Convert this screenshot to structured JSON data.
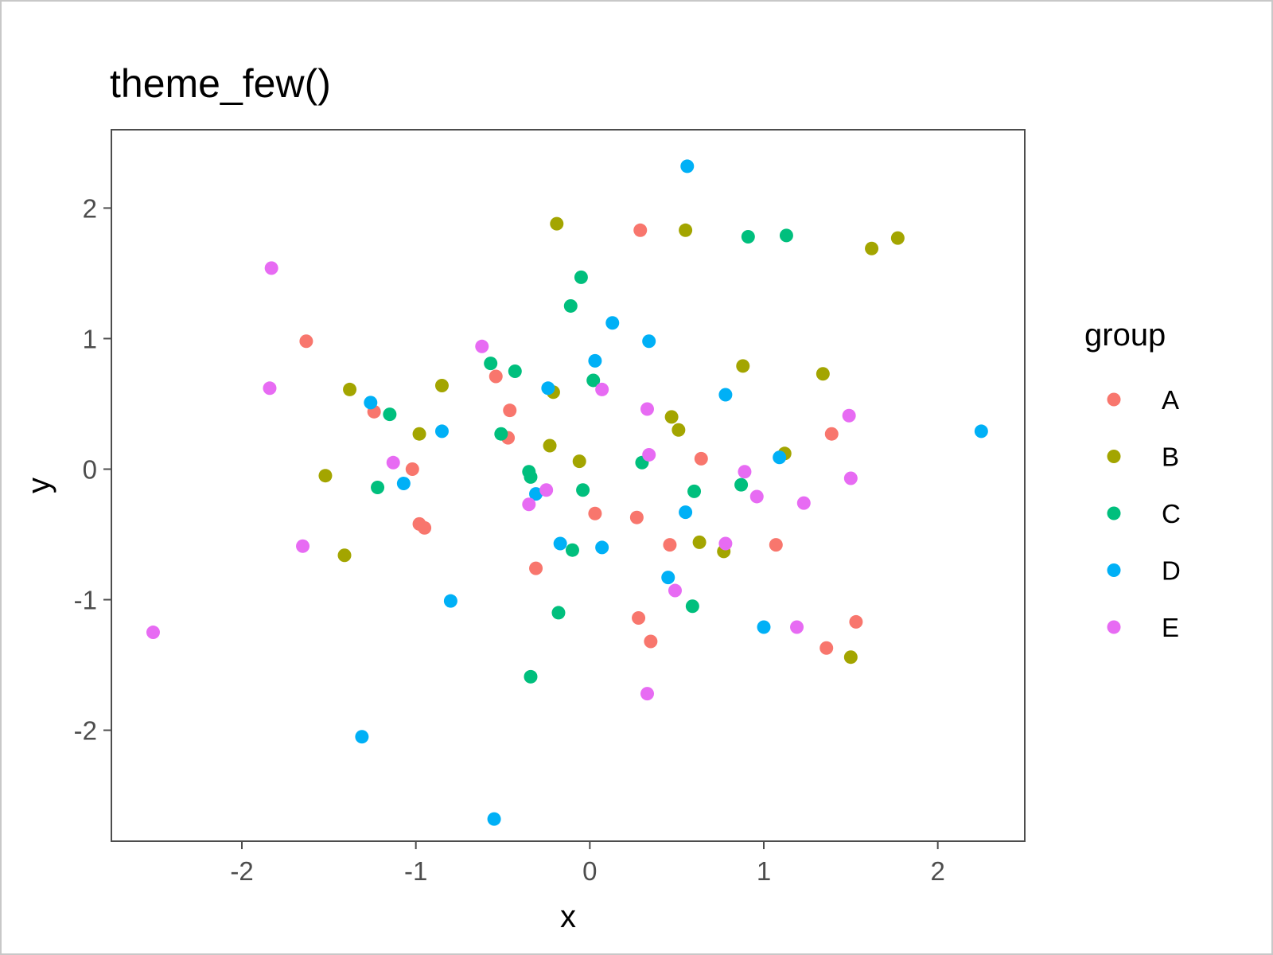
{
  "chart_data": {
    "type": "scatter",
    "title": "theme_few()",
    "xlabel": "x",
    "ylabel": "y",
    "xlim": [
      -2.75,
      2.5
    ],
    "ylim": [
      -2.85,
      2.6
    ],
    "x_ticks": [
      -2,
      -1,
      0,
      1,
      2
    ],
    "y_ticks": [
      -2,
      -1,
      0,
      1,
      2
    ],
    "grid": false,
    "legend": {
      "title": "group",
      "placement": "right"
    },
    "series": [
      {
        "name": "A",
        "color": "#F8766D",
        "points": [
          [
            0.29,
            1.83
          ],
          [
            -1.63,
            0.98
          ],
          [
            -0.54,
            0.71
          ],
          [
            -0.46,
            0.45
          ],
          [
            -1.24,
            0.44
          ],
          [
            -0.47,
            0.24
          ],
          [
            -1.02,
            0.0
          ],
          [
            0.64,
            0.08
          ],
          [
            1.39,
            0.27
          ],
          [
            0.03,
            -0.34
          ],
          [
            0.27,
            -0.37
          ],
          [
            -0.98,
            -0.42
          ],
          [
            -0.95,
            -0.45
          ],
          [
            0.46,
            -0.58
          ],
          [
            1.07,
            -0.58
          ],
          [
            -0.31,
            -0.76
          ],
          [
            0.28,
            -1.14
          ],
          [
            0.35,
            -1.32
          ],
          [
            1.53,
            -1.17
          ],
          [
            1.36,
            -1.37
          ]
        ]
      },
      {
        "name": "B",
        "color": "#A3A500",
        "points": [
          [
            -0.19,
            1.88
          ],
          [
            0.55,
            1.83
          ],
          [
            1.62,
            1.69
          ],
          [
            1.77,
            1.77
          ],
          [
            0.88,
            0.79
          ],
          [
            1.34,
            0.73
          ],
          [
            -0.85,
            0.64
          ],
          [
            -1.38,
            0.61
          ],
          [
            -0.21,
            0.59
          ],
          [
            0.47,
            0.4
          ],
          [
            0.51,
            0.3
          ],
          [
            -0.98,
            0.27
          ],
          [
            -0.23,
            0.18
          ],
          [
            -0.06,
            0.06
          ],
          [
            1.12,
            0.12
          ],
          [
            -1.52,
            -0.05
          ],
          [
            0.63,
            -0.56
          ],
          [
            0.77,
            -0.63
          ],
          [
            -1.41,
            -0.66
          ],
          [
            1.5,
            -1.44
          ]
        ]
      },
      {
        "name": "C",
        "color": "#00BF7D",
        "points": [
          [
            -0.05,
            1.47
          ],
          [
            0.91,
            1.78
          ],
          [
            1.13,
            1.79
          ],
          [
            -0.11,
            1.25
          ],
          [
            -0.57,
            0.81
          ],
          [
            -0.43,
            0.75
          ],
          [
            0.02,
            0.68
          ],
          [
            -1.15,
            0.42
          ],
          [
            -0.51,
            0.27
          ],
          [
            0.3,
            0.05
          ],
          [
            -0.35,
            -0.02
          ],
          [
            -0.34,
            -0.06
          ],
          [
            -1.22,
            -0.14
          ],
          [
            -0.04,
            -0.16
          ],
          [
            0.6,
            -0.17
          ],
          [
            0.87,
            -0.12
          ],
          [
            -0.1,
            -0.62
          ],
          [
            -0.18,
            -1.1
          ],
          [
            0.59,
            -1.05
          ],
          [
            -0.34,
            -1.59
          ]
        ]
      },
      {
        "name": "D",
        "color": "#00B0F6",
        "points": [
          [
            0.56,
            2.32
          ],
          [
            0.13,
            1.12
          ],
          [
            0.34,
            0.98
          ],
          [
            0.03,
            0.83
          ],
          [
            -0.24,
            0.62
          ],
          [
            0.78,
            0.57
          ],
          [
            -1.26,
            0.51
          ],
          [
            -0.85,
            0.29
          ],
          [
            2.25,
            0.29
          ],
          [
            1.09,
            0.09
          ],
          [
            -1.07,
            -0.11
          ],
          [
            -0.31,
            -0.19
          ],
          [
            0.55,
            -0.33
          ],
          [
            -0.17,
            -0.57
          ],
          [
            0.07,
            -0.6
          ],
          [
            0.45,
            -0.83
          ],
          [
            -0.8,
            -1.01
          ],
          [
            1.0,
            -1.21
          ],
          [
            -1.31,
            -2.05
          ],
          [
            -0.55,
            -2.68
          ]
        ]
      },
      {
        "name": "E",
        "color": "#E76BF3",
        "points": [
          [
            -1.83,
            1.54
          ],
          [
            -0.62,
            0.94
          ],
          [
            -1.84,
            0.62
          ],
          [
            0.07,
            0.61
          ],
          [
            0.33,
            0.46
          ],
          [
            1.49,
            0.41
          ],
          [
            -1.13,
            0.05
          ],
          [
            0.34,
            0.11
          ],
          [
            0.89,
            -0.02
          ],
          [
            1.5,
            -0.07
          ],
          [
            -0.25,
            -0.16
          ],
          [
            -0.35,
            -0.27
          ],
          [
            0.96,
            -0.21
          ],
          [
            1.23,
            -0.26
          ],
          [
            -1.65,
            -0.59
          ],
          [
            0.78,
            -0.57
          ],
          [
            0.49,
            -0.93
          ],
          [
            1.19,
            -1.21
          ],
          [
            0.33,
            -1.72
          ],
          [
            -2.51,
            -1.25
          ]
        ]
      }
    ]
  }
}
